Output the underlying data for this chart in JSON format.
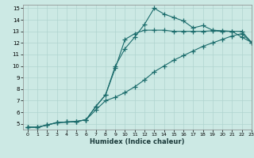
{
  "xlabel": "Humidex (Indice chaleur)",
  "xlim": [
    -0.5,
    23
  ],
  "ylim": [
    4.5,
    15.3
  ],
  "xticks": [
    0,
    1,
    2,
    3,
    4,
    5,
    6,
    7,
    8,
    9,
    10,
    11,
    12,
    13,
    14,
    15,
    16,
    17,
    18,
    19,
    20,
    21,
    22,
    23
  ],
  "yticks": [
    5,
    6,
    7,
    8,
    9,
    10,
    11,
    12,
    13,
    14,
    15
  ],
  "background_color": "#cce9e4",
  "line_color": "#1a6b6b",
  "grid_color": "#b0d4cf",
  "line1_x": [
    0,
    1,
    2,
    3,
    4,
    5,
    6,
    7,
    8,
    9,
    10,
    11,
    12,
    13,
    14,
    15,
    16,
    17,
    18,
    19,
    20,
    21,
    22,
    23
  ],
  "line1_y": [
    4.7,
    4.7,
    4.9,
    5.1,
    5.15,
    5.2,
    5.35,
    6.5,
    7.5,
    10.0,
    11.5,
    12.5,
    13.6,
    15.0,
    14.5,
    14.2,
    13.9,
    13.3,
    13.5,
    13.1,
    13.05,
    13.0,
    12.5,
    12.05
  ],
  "line2_x": [
    0,
    1,
    2,
    3,
    4,
    5,
    6,
    7,
    8,
    9,
    10,
    11,
    12,
    13,
    14,
    15,
    16,
    17,
    18,
    19,
    20,
    21,
    22,
    23
  ],
  "line2_y": [
    4.7,
    4.7,
    4.9,
    5.1,
    5.15,
    5.2,
    5.35,
    6.5,
    7.5,
    9.8,
    12.3,
    12.8,
    13.1,
    13.1,
    13.1,
    13.0,
    13.0,
    13.0,
    13.0,
    13.05,
    13.0,
    13.0,
    13.0,
    12.05
  ],
  "line3_x": [
    0,
    1,
    2,
    3,
    4,
    5,
    6,
    7,
    8,
    9,
    10,
    11,
    12,
    13,
    14,
    15,
    16,
    17,
    18,
    19,
    20,
    21,
    22,
    23
  ],
  "line3_y": [
    4.7,
    4.7,
    4.9,
    5.1,
    5.15,
    5.2,
    5.35,
    6.2,
    7.0,
    7.3,
    7.7,
    8.2,
    8.8,
    9.5,
    10.0,
    10.5,
    10.9,
    11.3,
    11.7,
    12.0,
    12.3,
    12.6,
    12.8,
    12.05
  ]
}
